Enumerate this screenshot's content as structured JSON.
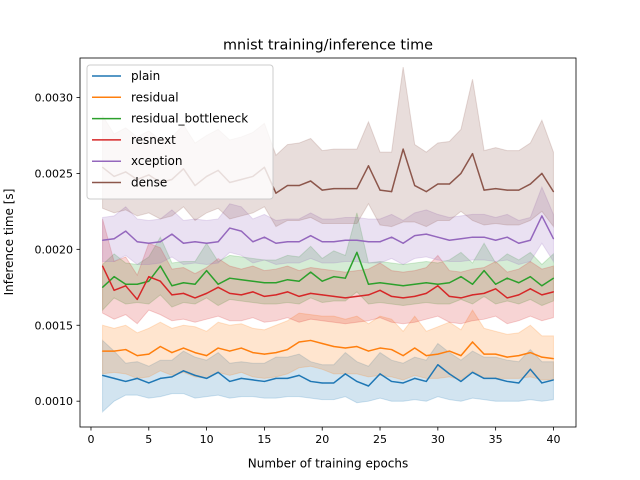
{
  "chart_data": {
    "type": "line",
    "title": "mnist training/inference time",
    "xlabel": "Number of training epochs",
    "ylabel": "Inference time [s]",
    "xlim": [
      -0.95,
      41.95
    ],
    "ylim": [
      0.00083,
      0.00326
    ],
    "xticks": [
      0,
      5,
      10,
      15,
      20,
      25,
      30,
      35,
      40
    ],
    "xtick_labels": [
      "0",
      "5",
      "10",
      "15",
      "20",
      "25",
      "30",
      "35",
      "40"
    ],
    "yticks": [
      0.001,
      0.0015,
      0.002,
      0.0025,
      0.003
    ],
    "ytick_labels": [
      "0.0010",
      "0.0015",
      "0.0020",
      "0.0025",
      "0.0030"
    ],
    "grid": false,
    "legend_position": "upper-left",
    "x": [
      1,
      2,
      3,
      4,
      5,
      6,
      7,
      8,
      9,
      10,
      11,
      12,
      13,
      14,
      15,
      16,
      17,
      18,
      19,
      20,
      21,
      22,
      23,
      24,
      25,
      26,
      27,
      28,
      29,
      30,
      31,
      32,
      33,
      34,
      35,
      36,
      37,
      38,
      39,
      40
    ],
    "series": [
      {
        "name": "plain",
        "color": "#1f77b4",
        "values": [
          0.00117,
          0.00115,
          0.00113,
          0.00115,
          0.00112,
          0.00115,
          0.00116,
          0.0012,
          0.00117,
          0.00115,
          0.00119,
          0.00113,
          0.00115,
          0.00114,
          0.00113,
          0.00115,
          0.00115,
          0.00117,
          0.00113,
          0.00112,
          0.00112,
          0.00118,
          0.00113,
          0.0011,
          0.00118,
          0.00113,
          0.00112,
          0.00115,
          0.00113,
          0.00124,
          0.00118,
          0.00113,
          0.00119,
          0.00115,
          0.00115,
          0.00113,
          0.00112,
          0.00121,
          0.00112,
          0.00114
        ],
        "lower": [
          0.00093,
          0.001,
          0.00104,
          0.00104,
          0.00102,
          0.00103,
          0.00105,
          0.00105,
          0.00102,
          0.00103,
          0.00104,
          0.00102,
          0.00103,
          0.00103,
          0.00102,
          0.00102,
          0.00103,
          0.00103,
          0.00102,
          0.00101,
          0.00101,
          0.00103,
          0.00099,
          0.001,
          0.00102,
          0.001,
          0.001,
          0.00101,
          0.001,
          0.00103,
          0.00101,
          0.001,
          0.00102,
          0.00101,
          0.001,
          0.001,
          0.001,
          0.00101,
          0.001,
          0.00101
        ],
        "upper": [
          0.0014,
          0.00133,
          0.00125,
          0.00126,
          0.00123,
          0.00127,
          0.00127,
          0.00133,
          0.00129,
          0.00127,
          0.00132,
          0.00125,
          0.00126,
          0.00125,
          0.00125,
          0.00129,
          0.00129,
          0.00131,
          0.00126,
          0.00124,
          0.00124,
          0.00132,
          0.00126,
          0.00123,
          0.00132,
          0.00127,
          0.00125,
          0.00129,
          0.00127,
          0.00138,
          0.00132,
          0.00127,
          0.00133,
          0.00129,
          0.00129,
          0.00127,
          0.00126,
          0.00134,
          0.00126,
          0.00126
        ]
      },
      {
        "name": "residual",
        "color": "#ff7f0e",
        "values": [
          0.00133,
          0.00133,
          0.00134,
          0.0013,
          0.00131,
          0.00136,
          0.00132,
          0.00135,
          0.00132,
          0.0013,
          0.00135,
          0.00133,
          0.00135,
          0.00132,
          0.00131,
          0.00132,
          0.00134,
          0.00139,
          0.0014,
          0.00138,
          0.00136,
          0.00135,
          0.00136,
          0.00133,
          0.00135,
          0.00134,
          0.0013,
          0.00135,
          0.0013,
          0.00131,
          0.00133,
          0.0013,
          0.00139,
          0.00131,
          0.00131,
          0.00129,
          0.0013,
          0.00132,
          0.00129,
          0.00128
        ],
        "lower": [
          0.00118,
          0.00119,
          0.00118,
          0.00115,
          0.00116,
          0.0012,
          0.00117,
          0.00119,
          0.00116,
          0.00115,
          0.00119,
          0.00117,
          0.00119,
          0.00116,
          0.00115,
          0.00116,
          0.00118,
          0.00122,
          0.00123,
          0.00121,
          0.00118,
          0.00118,
          0.00118,
          0.00116,
          0.00117,
          0.00116,
          0.00114,
          0.00117,
          0.00115,
          0.00115,
          0.00116,
          0.00114,
          0.0012,
          0.00115,
          0.00115,
          0.00115,
          0.00115,
          0.00116,
          0.00114,
          0.00114
        ],
        "upper": [
          0.0015,
          0.00148,
          0.0015,
          0.00145,
          0.00148,
          0.00152,
          0.00148,
          0.0015,
          0.00149,
          0.00146,
          0.00152,
          0.0015,
          0.00151,
          0.00148,
          0.00147,
          0.0015,
          0.00153,
          0.00158,
          0.00157,
          0.00156,
          0.00156,
          0.00154,
          0.00156,
          0.00151,
          0.00156,
          0.00154,
          0.00146,
          0.00156,
          0.00146,
          0.00149,
          0.00152,
          0.00147,
          0.0016,
          0.00148,
          0.00146,
          0.00144,
          0.00145,
          0.0015,
          0.00143,
          0.00143
        ]
      },
      {
        "name": "residual_bottleneck",
        "color": "#2ca02c",
        "values": [
          0.00175,
          0.00182,
          0.00177,
          0.00177,
          0.00179,
          0.00189,
          0.00176,
          0.00178,
          0.00177,
          0.00186,
          0.00177,
          0.00181,
          0.0018,
          0.00179,
          0.00178,
          0.00178,
          0.0018,
          0.00179,
          0.00185,
          0.00179,
          0.00182,
          0.00181,
          0.00198,
          0.00177,
          0.00178,
          0.00177,
          0.00176,
          0.00177,
          0.00178,
          0.00177,
          0.00178,
          0.00182,
          0.00177,
          0.00186,
          0.00177,
          0.00181,
          0.00178,
          0.00182,
          0.00176,
          0.00181
        ],
        "lower": [
          0.0016,
          0.00168,
          0.00164,
          0.00165,
          0.00164,
          0.0017,
          0.00162,
          0.00165,
          0.00164,
          0.00168,
          0.00163,
          0.00167,
          0.00166,
          0.00165,
          0.00164,
          0.00164,
          0.00165,
          0.00164,
          0.00168,
          0.00165,
          0.00166,
          0.00166,
          0.00172,
          0.00164,
          0.00165,
          0.00164,
          0.00163,
          0.00164,
          0.00165,
          0.00164,
          0.00164,
          0.00167,
          0.00164,
          0.00169,
          0.00164,
          0.00166,
          0.00164,
          0.00167,
          0.00163,
          0.00166
        ],
        "upper": [
          0.0019,
          0.00197,
          0.00191,
          0.0019,
          0.00195,
          0.00208,
          0.00191,
          0.00192,
          0.00192,
          0.00204,
          0.00192,
          0.00196,
          0.00195,
          0.00194,
          0.00193,
          0.00193,
          0.00196,
          0.00195,
          0.00202,
          0.00194,
          0.00199,
          0.00196,
          0.00224,
          0.00191,
          0.00192,
          0.00191,
          0.0019,
          0.00191,
          0.00192,
          0.00191,
          0.00193,
          0.00198,
          0.00191,
          0.00204,
          0.00191,
          0.00197,
          0.00193,
          0.00198,
          0.0019,
          0.00197
        ]
      },
      {
        "name": "resnext",
        "color": "#d62728",
        "values": [
          0.00189,
          0.00173,
          0.00176,
          0.00167,
          0.00182,
          0.00179,
          0.0017,
          0.00171,
          0.00168,
          0.00171,
          0.00175,
          0.00171,
          0.0017,
          0.00172,
          0.00169,
          0.0017,
          0.00172,
          0.00169,
          0.00171,
          0.0017,
          0.00169,
          0.00168,
          0.00169,
          0.0017,
          0.00173,
          0.00169,
          0.00168,
          0.00169,
          0.00171,
          0.00176,
          0.00169,
          0.00168,
          0.0017,
          0.00171,
          0.00174,
          0.00168,
          0.0017,
          0.00174,
          0.0017,
          0.00172
        ],
        "lower": [
          0.00158,
          0.00154,
          0.00157,
          0.00151,
          0.0016,
          0.00157,
          0.00153,
          0.00154,
          0.00152,
          0.00154,
          0.00156,
          0.00153,
          0.00153,
          0.00155,
          0.00152,
          0.00153,
          0.00155,
          0.00152,
          0.00154,
          0.00153,
          0.00152,
          0.00151,
          0.00152,
          0.00153,
          0.00155,
          0.00152,
          0.00151,
          0.00152,
          0.00154,
          0.00156,
          0.00152,
          0.00151,
          0.00153,
          0.00154,
          0.00156,
          0.00151,
          0.00153,
          0.00156,
          0.00153,
          0.00155
        ],
        "upper": [
          0.0022,
          0.00192,
          0.00195,
          0.00183,
          0.00204,
          0.00201,
          0.00187,
          0.00188,
          0.00184,
          0.00188,
          0.00194,
          0.00189,
          0.00187,
          0.00189,
          0.00186,
          0.00187,
          0.00189,
          0.00186,
          0.00188,
          0.00187,
          0.00186,
          0.00185,
          0.00186,
          0.00187,
          0.00191,
          0.00186,
          0.00185,
          0.00186,
          0.00188,
          0.00196,
          0.00186,
          0.00185,
          0.00187,
          0.00188,
          0.00192,
          0.00185,
          0.00187,
          0.00192,
          0.00187,
          0.00189
        ]
      },
      {
        "name": "xception",
        "color": "#9467bd",
        "values": [
          0.00206,
          0.00207,
          0.00212,
          0.00205,
          0.00204,
          0.00205,
          0.0021,
          0.00204,
          0.00205,
          0.00204,
          0.00205,
          0.00214,
          0.00212,
          0.00205,
          0.00208,
          0.00204,
          0.00205,
          0.00205,
          0.00209,
          0.00205,
          0.00205,
          0.00206,
          0.00206,
          0.00205,
          0.00205,
          0.00208,
          0.00204,
          0.00209,
          0.0021,
          0.00208,
          0.00206,
          0.00207,
          0.00208,
          0.00208,
          0.00206,
          0.00208,
          0.00204,
          0.00206,
          0.00222,
          0.00207
        ],
        "lower": [
          0.00192,
          0.00192,
          0.00196,
          0.0019,
          0.0019,
          0.00191,
          0.00195,
          0.0019,
          0.00191,
          0.0019,
          0.00191,
          0.00198,
          0.00196,
          0.00191,
          0.00193,
          0.0019,
          0.00191,
          0.00191,
          0.00194,
          0.00191,
          0.00191,
          0.00192,
          0.00192,
          0.00191,
          0.00191,
          0.00194,
          0.0019,
          0.00194,
          0.00195,
          0.00193,
          0.00192,
          0.00192,
          0.00193,
          0.00193,
          0.00192,
          0.00193,
          0.0019,
          0.00192,
          0.00204,
          0.00192
        ],
        "upper": [
          0.00221,
          0.00222,
          0.00228,
          0.0022,
          0.00219,
          0.0022,
          0.00226,
          0.00219,
          0.0022,
          0.00219,
          0.0022,
          0.0023,
          0.00228,
          0.0022,
          0.00223,
          0.00219,
          0.0022,
          0.0022,
          0.00224,
          0.0022,
          0.0022,
          0.00221,
          0.00221,
          0.0022,
          0.0022,
          0.00223,
          0.00219,
          0.00224,
          0.00226,
          0.00223,
          0.00221,
          0.00222,
          0.00223,
          0.00223,
          0.00221,
          0.00223,
          0.00219,
          0.00221,
          0.00241,
          0.00223
        ]
      },
      {
        "name": "dense",
        "color": "#8c564b",
        "values": [
          0.00254,
          0.00248,
          0.00251,
          0.00246,
          0.00249,
          0.00244,
          0.00246,
          0.00253,
          0.00242,
          0.00248,
          0.00252,
          0.00244,
          0.00246,
          0.00248,
          0.00254,
          0.00237,
          0.00242,
          0.00242,
          0.00245,
          0.00239,
          0.0024,
          0.0024,
          0.0024,
          0.00255,
          0.00239,
          0.00238,
          0.00266,
          0.00242,
          0.00238,
          0.00243,
          0.00243,
          0.0025,
          0.00263,
          0.00239,
          0.0024,
          0.00239,
          0.00239,
          0.00243,
          0.0025,
          0.00238
        ],
        "lower": [
          0.00227,
          0.00224,
          0.00226,
          0.00222,
          0.00224,
          0.0022,
          0.00222,
          0.00228,
          0.00219,
          0.00224,
          0.00227,
          0.0022,
          0.00222,
          0.00224,
          0.00228,
          0.00215,
          0.00219,
          0.00219,
          0.00221,
          0.00217,
          0.00217,
          0.00217,
          0.00217,
          0.0023,
          0.00216,
          0.00215,
          0.00218,
          0.00218,
          0.00215,
          0.00219,
          0.00219,
          0.00225,
          0.00219,
          0.00216,
          0.00217,
          0.00216,
          0.00216,
          0.00219,
          0.00225,
          0.00215
        ],
        "upper": [
          0.00288,
          0.00276,
          0.0028,
          0.00274,
          0.00278,
          0.00272,
          0.00274,
          0.00282,
          0.0027,
          0.00275,
          0.00279,
          0.00272,
          0.00274,
          0.00277,
          0.00283,
          0.00262,
          0.00269,
          0.0027,
          0.00273,
          0.00265,
          0.00266,
          0.00266,
          0.00266,
          0.00284,
          0.00264,
          0.00264,
          0.0032,
          0.00269,
          0.00264,
          0.0027,
          0.00271,
          0.00279,
          0.00312,
          0.00265,
          0.00267,
          0.00265,
          0.00265,
          0.0027,
          0.00285,
          0.00264
        ]
      }
    ]
  }
}
